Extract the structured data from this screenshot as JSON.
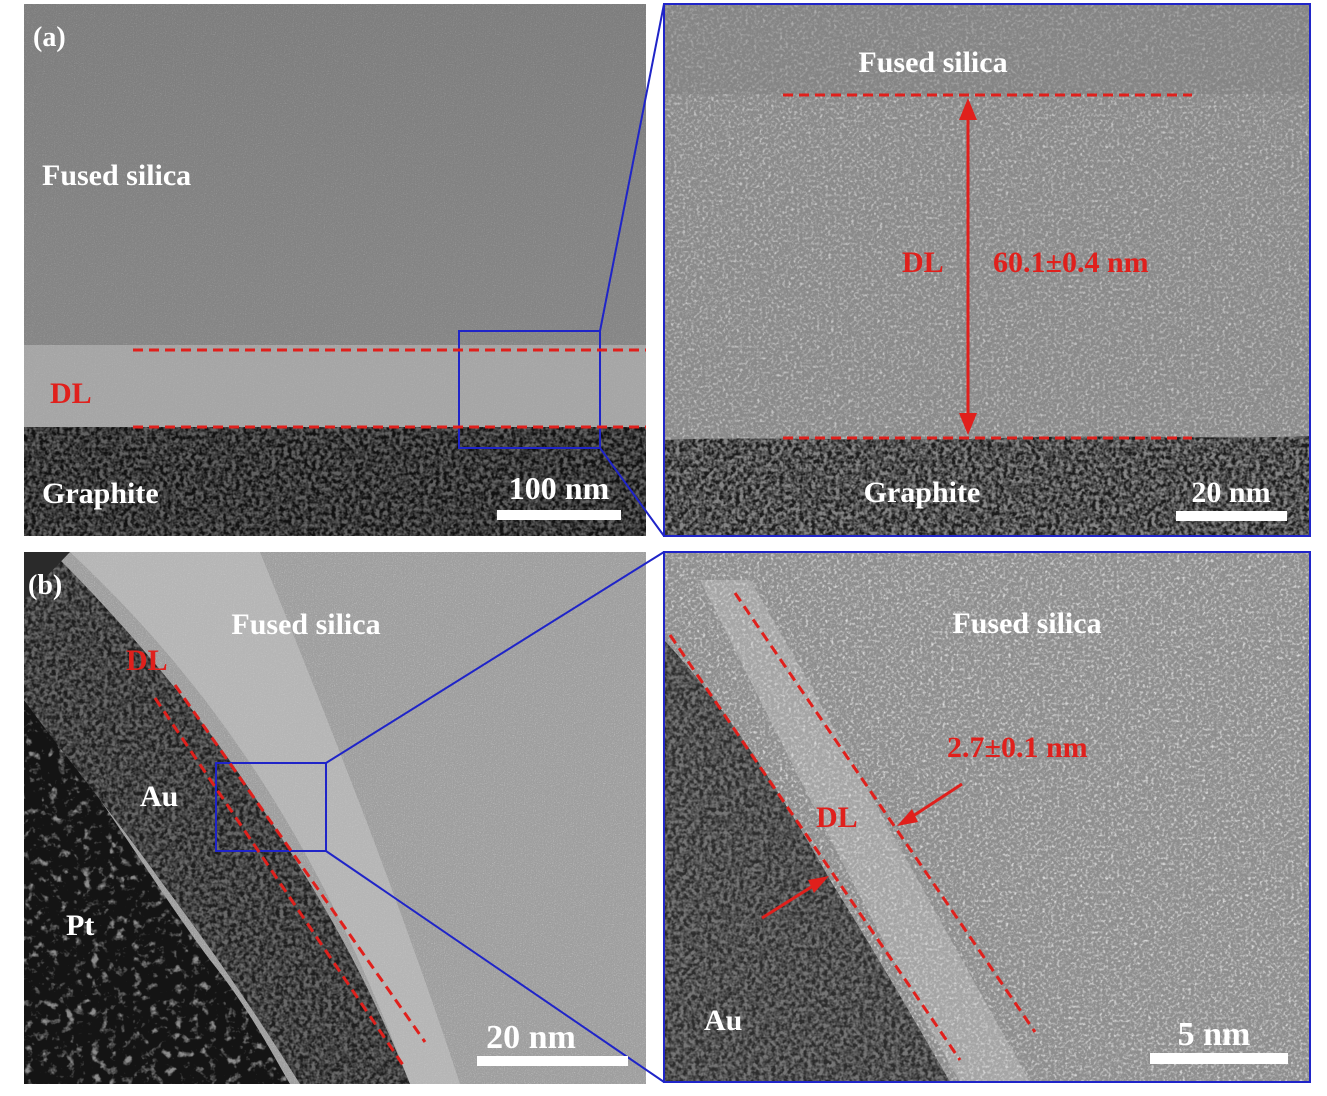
{
  "figure": {
    "panel_a": {
      "tag": "(a)",
      "left": {
        "label_top": "Fused silica",
        "label_layer": "DL",
        "label_bottom": "Graphite",
        "scale_bar": "100 nm"
      },
      "right": {
        "label_top": "Fused silica",
        "label_layer": "DL",
        "measurement": "60.1±0.4 nm",
        "label_bottom": "Graphite",
        "scale_bar": "20 nm"
      }
    },
    "panel_b": {
      "tag": "(b)",
      "left": {
        "label_top": "Fused silica",
        "label_layer": "DL",
        "label_mid": "Au",
        "label_bottom": "Pt",
        "scale_bar": "20 nm"
      },
      "right": {
        "label_top": "Fused silica",
        "label_layer": "DL",
        "measurement": "2.7±0.1 nm",
        "label_bottom": "Au",
        "scale_bar": "5 nm"
      }
    }
  },
  "colors": {
    "annotation": "#e0201c",
    "zoom_frame": "#1f24c8",
    "text_light": "#ffffff"
  }
}
